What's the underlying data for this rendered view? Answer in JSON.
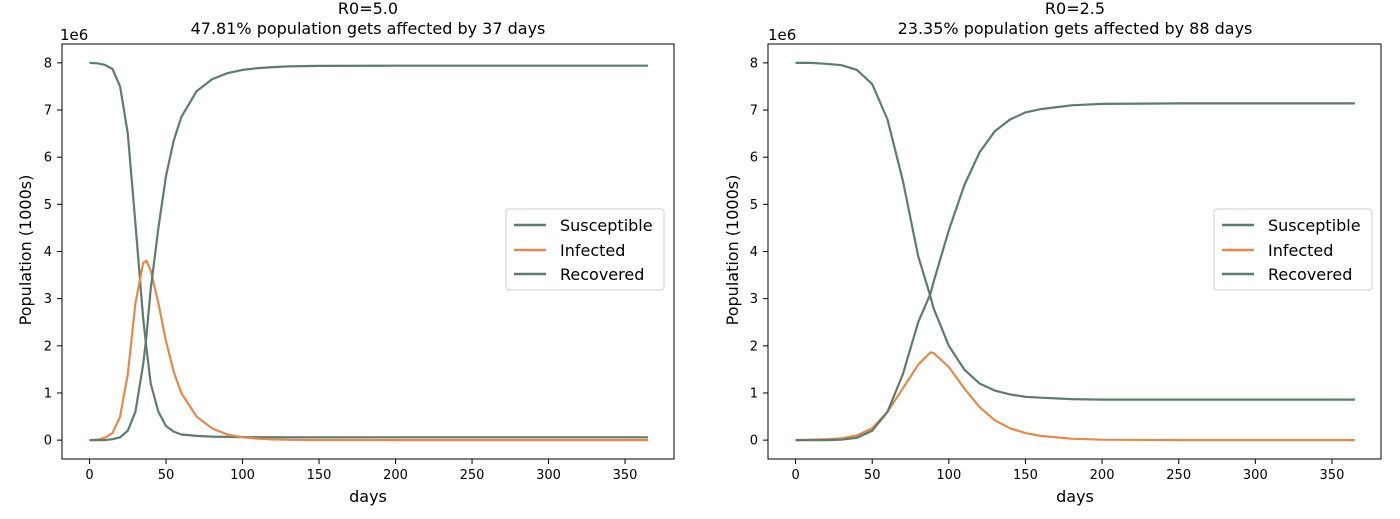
{
  "chart_data": [
    {
      "type": "line",
      "title": "R0=5.0",
      "subtitle": "47.81% population gets affected by 37 days",
      "xlabel": "days",
      "ylabel": "Population (1000s)",
      "y_offset_label": "1e6",
      "xlim": [
        -18,
        382
      ],
      "ylim": [
        -0.4,
        8.4
      ],
      "y_scale": 1000000,
      "xticks": [
        0,
        50,
        100,
        150,
        200,
        250,
        300,
        350
      ],
      "yticks": [
        0,
        1,
        2,
        3,
        4,
        5,
        6,
        7,
        8
      ],
      "grid": false,
      "legend_position": "center-right",
      "x": [
        0,
        5,
        10,
        15,
        20,
        25,
        30,
        35,
        37,
        40,
        45,
        50,
        55,
        60,
        70,
        80,
        90,
        100,
        110,
        120,
        130,
        150,
        200,
        250,
        300,
        365
      ],
      "series": [
        {
          "name": "Susceptible",
          "color": "#5f7b6c",
          "values": [
            8.0,
            7.99,
            7.96,
            7.87,
            7.5,
            6.5,
            4.6,
            2.6,
            2.0,
            1.2,
            0.6,
            0.3,
            0.18,
            0.12,
            0.09,
            0.075,
            0.068,
            0.065,
            0.063,
            0.062,
            0.061,
            0.06,
            0.06,
            0.06,
            0.06,
            0.06
          ]
        },
        {
          "name": "Infected",
          "color": "#e4894b",
          "values": [
            0.0,
            0.01,
            0.05,
            0.15,
            0.5,
            1.4,
            2.9,
            3.75,
            3.81,
            3.6,
            2.9,
            2.1,
            1.45,
            1.0,
            0.5,
            0.25,
            0.12,
            0.06,
            0.03,
            0.015,
            0.008,
            0.003,
            0.0,
            0.0,
            0.0,
            0.0
          ]
        },
        {
          "name": "Recovered",
          "color": "#5f7b6c",
          "values": [
            0.0,
            0.0,
            0.0,
            0.02,
            0.06,
            0.2,
            0.6,
            1.6,
            2.15,
            3.2,
            4.5,
            5.6,
            6.35,
            6.85,
            7.4,
            7.65,
            7.78,
            7.85,
            7.89,
            7.91,
            7.925,
            7.935,
            7.94,
            7.94,
            7.94,
            7.94
          ]
        }
      ]
    },
    {
      "type": "line",
      "title": "R0=2.5",
      "subtitle": "23.35% population gets affected by 88 days",
      "xlabel": "days",
      "ylabel": "Population (1000s)",
      "y_offset_label": "1e6",
      "xlim": [
        -18,
        382
      ],
      "ylim": [
        -0.4,
        8.4
      ],
      "y_scale": 1000000,
      "xticks": [
        0,
        50,
        100,
        150,
        200,
        250,
        300,
        350
      ],
      "yticks": [
        0,
        1,
        2,
        3,
        4,
        5,
        6,
        7,
        8
      ],
      "grid": false,
      "legend_position": "center-right",
      "x": [
        0,
        10,
        20,
        30,
        40,
        50,
        60,
        70,
        80,
        88,
        90,
        100,
        110,
        120,
        130,
        140,
        150,
        160,
        180,
        200,
        250,
        300,
        365
      ],
      "series": [
        {
          "name": "Susceptible",
          "color": "#5f7b6c",
          "values": [
            8.0,
            8.0,
            7.98,
            7.95,
            7.85,
            7.55,
            6.8,
            5.5,
            3.9,
            3.05,
            2.8,
            2.0,
            1.5,
            1.2,
            1.05,
            0.97,
            0.92,
            0.9,
            0.87,
            0.86,
            0.86,
            0.86,
            0.86
          ]
        },
        {
          "name": "Infected",
          "color": "#e4894b",
          "values": [
            0.0,
            0.01,
            0.02,
            0.04,
            0.1,
            0.25,
            0.6,
            1.1,
            1.6,
            1.86,
            1.85,
            1.55,
            1.1,
            0.7,
            0.42,
            0.25,
            0.15,
            0.09,
            0.03,
            0.01,
            0.0,
            0.0,
            0.0
          ]
        },
        {
          "name": "Recovered",
          "color": "#5f7b6c",
          "values": [
            0.0,
            0.0,
            0.0,
            0.01,
            0.05,
            0.2,
            0.6,
            1.4,
            2.5,
            3.1,
            3.35,
            4.45,
            5.4,
            6.1,
            6.55,
            6.8,
            6.95,
            7.02,
            7.1,
            7.13,
            7.14,
            7.14,
            7.14
          ]
        }
      ]
    }
  ]
}
